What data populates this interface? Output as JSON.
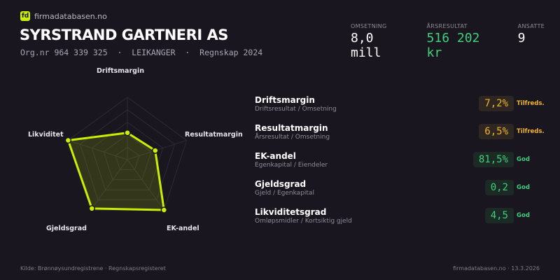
{
  "brand": {
    "name": "firmadatabasen.no",
    "logo_text": "fd",
    "accent": "#c8f000"
  },
  "company": {
    "name": "SYRSTRAND GARTNERI AS",
    "subtitle": "Org.nr 964 339 325  ·  LEIKANGER  ·  Regnskap 2024"
  },
  "stats": [
    {
      "label": "OMSETNING",
      "value": "8,0 mill",
      "color": "#ffffff"
    },
    {
      "label": "ÅRSRESULTAT",
      "value": "516 202 kr",
      "color": "#3ed07a"
    },
    {
      "label": "ANSATTE",
      "value": "9",
      "color": "#ffffff"
    }
  ],
  "radar": {
    "axes": [
      "Driftsmargin",
      "Resultatmargin",
      "EK-andel",
      "Gjeldsgrad",
      "Likviditet"
    ],
    "scores": [
      0.43,
      0.47,
      1.0,
      0.97,
      1.0
    ],
    "rings": 5,
    "color": "#c8f000"
  },
  "metrics": [
    {
      "name": "Driftsmargin",
      "desc": "Driftsresultat / Omsetning",
      "value": "7,2%",
      "rating": "Tilfreds.",
      "status": "warn"
    },
    {
      "name": "Resultatmargin",
      "desc": "Årsresultat / Omsetning",
      "value": "6,5%",
      "rating": "Tilfreds.",
      "status": "warn"
    },
    {
      "name": "EK-andel",
      "desc": "Egenkapital / Eiendeler",
      "value": "81,5%",
      "rating": "God",
      "status": "good"
    },
    {
      "name": "Gjeldsgrad",
      "desc": "Gjeld / Egenkapital",
      "value": "0,2",
      "rating": "God",
      "status": "good"
    },
    {
      "name": "Likviditetsgrad",
      "desc": "Omløpsmidler / Kortsiktig gjeld",
      "value": "4,5",
      "rating": "God",
      "status": "good"
    }
  ],
  "status_colors": {
    "warn": "#f0b429",
    "good": "#3ed07a"
  },
  "footer": {
    "source": "Kilde: Brønnøysundregistrene · Regnskapsregisteret",
    "site": "firmadatabasen.no · 13.3.2026"
  }
}
